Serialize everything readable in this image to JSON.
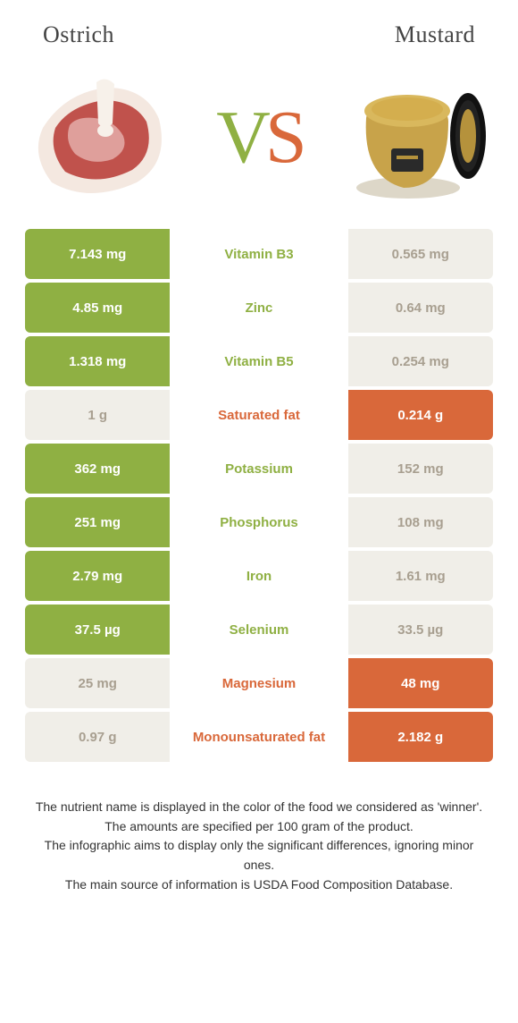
{
  "titles": {
    "left": "Ostrich",
    "right": "Mustard"
  },
  "vs": {
    "v": "V",
    "s": "S"
  },
  "colors": {
    "left_bg": "#8fb043",
    "right_bg": "#d9683a",
    "neutral_bg": "#f0eee8",
    "neutral_text": "#a89f90",
    "row_gap": 4,
    "mid_width_pct": 38,
    "side_width_pct": 31
  },
  "rows": [
    {
      "left": "7.143 mg",
      "label": "Vitamin B3",
      "right": "0.565 mg",
      "winner": "left"
    },
    {
      "left": "4.85 mg",
      "label": "Zinc",
      "right": "0.64 mg",
      "winner": "left"
    },
    {
      "left": "1.318 mg",
      "label": "Vitamin B5",
      "right": "0.254 mg",
      "winner": "left"
    },
    {
      "left": "1 g",
      "label": "Saturated fat",
      "right": "0.214 g",
      "winner": "right"
    },
    {
      "left": "362 mg",
      "label": "Potassium",
      "right": "152 mg",
      "winner": "left"
    },
    {
      "left": "251 mg",
      "label": "Phosphorus",
      "right": "108 mg",
      "winner": "left"
    },
    {
      "left": "2.79 mg",
      "label": "Iron",
      "right": "1.61 mg",
      "winner": "left"
    },
    {
      "left": "37.5 µg",
      "label": "Selenium",
      "right": "33.5 µg",
      "winner": "left"
    },
    {
      "left": "25 mg",
      "label": "Magnesium",
      "right": "48 mg",
      "winner": "right"
    },
    {
      "left": "0.97 g",
      "label": "Monounsaturated fat",
      "right": "2.182 g",
      "winner": "right"
    }
  ],
  "footer": [
    "The nutrient name is displayed in the color of the food we considered as 'winner'.",
    "The amounts are specified per 100 gram of the product.",
    "The infographic aims to display only the significant differences, ignoring minor ones.",
    "The main source of information is USDA Food Composition Database."
  ]
}
